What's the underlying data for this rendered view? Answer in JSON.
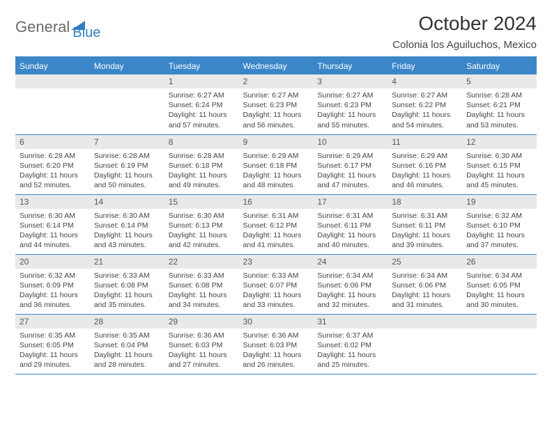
{
  "brand": {
    "part1": "General",
    "part2": "Blue"
  },
  "title": "October 2024",
  "location": "Colonia los Aguiluchos, Mexico",
  "colors": {
    "header_bg": "#3b86c8",
    "header_text": "#ffffff",
    "daynum_bg": "#e9e9e9",
    "border": "#3b86c8",
    "body_text": "#444444"
  },
  "type": "calendar-table",
  "weekdays": [
    "Sunday",
    "Monday",
    "Tuesday",
    "Wednesday",
    "Thursday",
    "Friday",
    "Saturday"
  ],
  "weeks": [
    [
      null,
      null,
      {
        "n": "1",
        "sr": "Sunrise: 6:27 AM",
        "ss": "Sunset: 6:24 PM",
        "dl": "Daylight: 11 hours and 57 minutes."
      },
      {
        "n": "2",
        "sr": "Sunrise: 6:27 AM",
        "ss": "Sunset: 6:23 PM",
        "dl": "Daylight: 11 hours and 56 minutes."
      },
      {
        "n": "3",
        "sr": "Sunrise: 6:27 AM",
        "ss": "Sunset: 6:23 PM",
        "dl": "Daylight: 11 hours and 55 minutes."
      },
      {
        "n": "4",
        "sr": "Sunrise: 6:27 AM",
        "ss": "Sunset: 6:22 PM",
        "dl": "Daylight: 11 hours and 54 minutes."
      },
      {
        "n": "5",
        "sr": "Sunrise: 6:28 AM",
        "ss": "Sunset: 6:21 PM",
        "dl": "Daylight: 11 hours and 53 minutes."
      }
    ],
    [
      {
        "n": "6",
        "sr": "Sunrise: 6:28 AM",
        "ss": "Sunset: 6:20 PM",
        "dl": "Daylight: 11 hours and 52 minutes."
      },
      {
        "n": "7",
        "sr": "Sunrise: 6:28 AM",
        "ss": "Sunset: 6:19 PM",
        "dl": "Daylight: 11 hours and 50 minutes."
      },
      {
        "n": "8",
        "sr": "Sunrise: 6:28 AM",
        "ss": "Sunset: 6:18 PM",
        "dl": "Daylight: 11 hours and 49 minutes."
      },
      {
        "n": "9",
        "sr": "Sunrise: 6:29 AM",
        "ss": "Sunset: 6:18 PM",
        "dl": "Daylight: 11 hours and 48 minutes."
      },
      {
        "n": "10",
        "sr": "Sunrise: 6:29 AM",
        "ss": "Sunset: 6:17 PM",
        "dl": "Daylight: 11 hours and 47 minutes."
      },
      {
        "n": "11",
        "sr": "Sunrise: 6:29 AM",
        "ss": "Sunset: 6:16 PM",
        "dl": "Daylight: 11 hours and 46 minutes."
      },
      {
        "n": "12",
        "sr": "Sunrise: 6:30 AM",
        "ss": "Sunset: 6:15 PM",
        "dl": "Daylight: 11 hours and 45 minutes."
      }
    ],
    [
      {
        "n": "13",
        "sr": "Sunrise: 6:30 AM",
        "ss": "Sunset: 6:14 PM",
        "dl": "Daylight: 11 hours and 44 minutes."
      },
      {
        "n": "14",
        "sr": "Sunrise: 6:30 AM",
        "ss": "Sunset: 6:14 PM",
        "dl": "Daylight: 11 hours and 43 minutes."
      },
      {
        "n": "15",
        "sr": "Sunrise: 6:30 AM",
        "ss": "Sunset: 6:13 PM",
        "dl": "Daylight: 11 hours and 42 minutes."
      },
      {
        "n": "16",
        "sr": "Sunrise: 6:31 AM",
        "ss": "Sunset: 6:12 PM",
        "dl": "Daylight: 11 hours and 41 minutes."
      },
      {
        "n": "17",
        "sr": "Sunrise: 6:31 AM",
        "ss": "Sunset: 6:11 PM",
        "dl": "Daylight: 11 hours and 40 minutes."
      },
      {
        "n": "18",
        "sr": "Sunrise: 6:31 AM",
        "ss": "Sunset: 6:11 PM",
        "dl": "Daylight: 11 hours and 39 minutes."
      },
      {
        "n": "19",
        "sr": "Sunrise: 6:32 AM",
        "ss": "Sunset: 6:10 PM",
        "dl": "Daylight: 11 hours and 37 minutes."
      }
    ],
    [
      {
        "n": "20",
        "sr": "Sunrise: 6:32 AM",
        "ss": "Sunset: 6:09 PM",
        "dl": "Daylight: 11 hours and 36 minutes."
      },
      {
        "n": "21",
        "sr": "Sunrise: 6:33 AM",
        "ss": "Sunset: 6:08 PM",
        "dl": "Daylight: 11 hours and 35 minutes."
      },
      {
        "n": "22",
        "sr": "Sunrise: 6:33 AM",
        "ss": "Sunset: 6:08 PM",
        "dl": "Daylight: 11 hours and 34 minutes."
      },
      {
        "n": "23",
        "sr": "Sunrise: 6:33 AM",
        "ss": "Sunset: 6:07 PM",
        "dl": "Daylight: 11 hours and 33 minutes."
      },
      {
        "n": "24",
        "sr": "Sunrise: 6:34 AM",
        "ss": "Sunset: 6:06 PM",
        "dl": "Daylight: 11 hours and 32 minutes."
      },
      {
        "n": "25",
        "sr": "Sunrise: 6:34 AM",
        "ss": "Sunset: 6:06 PM",
        "dl": "Daylight: 11 hours and 31 minutes."
      },
      {
        "n": "26",
        "sr": "Sunrise: 6:34 AM",
        "ss": "Sunset: 6:05 PM",
        "dl": "Daylight: 11 hours and 30 minutes."
      }
    ],
    [
      {
        "n": "27",
        "sr": "Sunrise: 6:35 AM",
        "ss": "Sunset: 6:05 PM",
        "dl": "Daylight: 11 hours and 29 minutes."
      },
      {
        "n": "28",
        "sr": "Sunrise: 6:35 AM",
        "ss": "Sunset: 6:04 PM",
        "dl": "Daylight: 11 hours and 28 minutes."
      },
      {
        "n": "29",
        "sr": "Sunrise: 6:36 AM",
        "ss": "Sunset: 6:03 PM",
        "dl": "Daylight: 11 hours and 27 minutes."
      },
      {
        "n": "30",
        "sr": "Sunrise: 6:36 AM",
        "ss": "Sunset: 6:03 PM",
        "dl": "Daylight: 11 hours and 26 minutes."
      },
      {
        "n": "31",
        "sr": "Sunrise: 6:37 AM",
        "ss": "Sunset: 6:02 PM",
        "dl": "Daylight: 11 hours and 25 minutes."
      },
      null,
      null
    ]
  ]
}
